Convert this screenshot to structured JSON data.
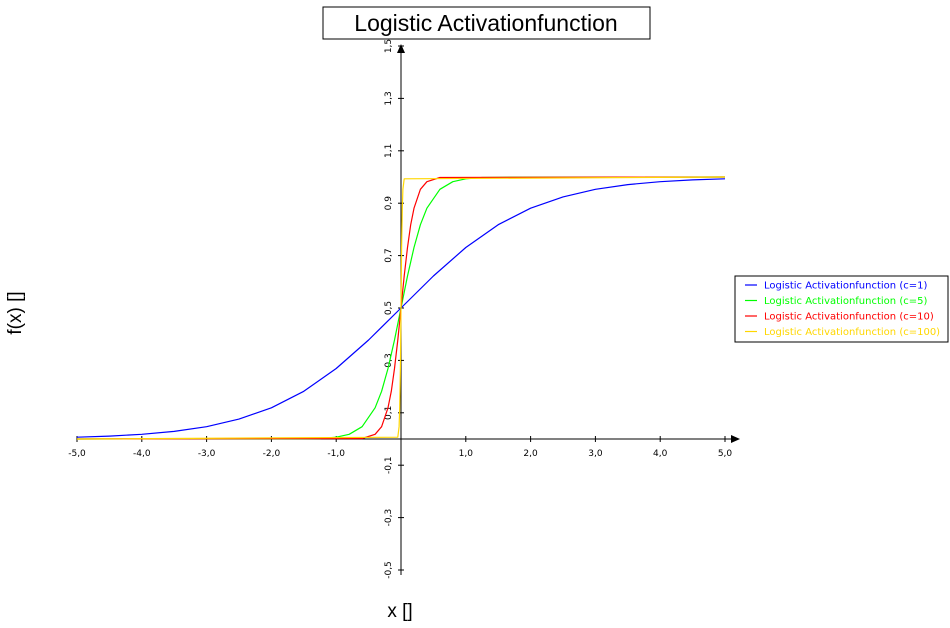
{
  "chart_data": {
    "type": "line",
    "title": "Logistic Activationfunction",
    "xlabel": "x []",
    "ylabel": "f(x) []",
    "xlim": [
      -5.0,
      5.0
    ],
    "ylim": [
      -0.6,
      1.5
    ],
    "x_ticks": [
      {
        "value": -5.0,
        "label": "-5,0"
      },
      {
        "value": -4.0,
        "label": "-4,0"
      },
      {
        "value": -3.0,
        "label": "-3,0"
      },
      {
        "value": -2.0,
        "label": "-2,0"
      },
      {
        "value": -1.0,
        "label": "-1,0"
      },
      {
        "value": 1.0,
        "label": "1,0"
      },
      {
        "value": 2.0,
        "label": "2,0"
      },
      {
        "value": 3.0,
        "label": "3,0"
      },
      {
        "value": 4.0,
        "label": "4,0"
      },
      {
        "value": 5.0,
        "label": "5,0"
      }
    ],
    "y_ticks": [
      {
        "value": 1.5,
        "label": "1,5"
      },
      {
        "value": 1.3,
        "label": "1,3"
      },
      {
        "value": 1.1,
        "label": "1,1"
      },
      {
        "value": 0.9,
        "label": "0,9"
      },
      {
        "value": 0.7,
        "label": "0,7"
      },
      {
        "value": 0.5,
        "label": "0,5"
      },
      {
        "value": 0.3,
        "label": "0,3"
      },
      {
        "value": 0.1,
        "label": "0,1"
      },
      {
        "value": -0.1,
        "label": "-0,1"
      },
      {
        "value": -0.3,
        "label": "-0,3"
      },
      {
        "value": -0.5,
        "label": "-0,5"
      }
    ],
    "grid": false,
    "legend_position": "right",
    "series": [
      {
        "name": "Logistic Activationfunction (c=1)",
        "color": "#0000ff",
        "x": [
          -5.0,
          -4.5,
          -4.0,
          -3.5,
          -3.0,
          -2.5,
          -2.0,
          -1.5,
          -1.0,
          -0.5,
          0.0,
          0.5,
          1.0,
          1.5,
          2.0,
          2.5,
          3.0,
          3.5,
          4.0,
          4.5,
          5.0
        ],
        "y": [
          0.007,
          0.011,
          0.018,
          0.029,
          0.047,
          0.076,
          0.119,
          0.182,
          0.269,
          0.378,
          0.5,
          0.622,
          0.731,
          0.818,
          0.881,
          0.924,
          0.953,
          0.971,
          0.982,
          0.989,
          0.993
        ]
      },
      {
        "name": "Logistic Activationfunction (c=5)",
        "color": "#00ff00",
        "x": [
          -5.0,
          -1.5,
          -1.25,
          -1.0,
          -0.8,
          -0.6,
          -0.4,
          -0.3,
          -0.2,
          -0.1,
          0.0,
          0.1,
          0.2,
          0.3,
          0.4,
          0.6,
          0.8,
          1.0,
          1.25,
          1.5,
          5.0
        ],
        "y": [
          0.0,
          0.001,
          0.002,
          0.007,
          0.018,
          0.047,
          0.119,
          0.182,
          0.269,
          0.378,
          0.5,
          0.622,
          0.731,
          0.818,
          0.881,
          0.953,
          0.982,
          0.993,
          0.998,
          0.999,
          1.0
        ]
      },
      {
        "name": "Logistic Activationfunction (c=10)",
        "color": "#ff0000",
        "x": [
          -5.0,
          -0.6,
          -0.4,
          -0.3,
          -0.2,
          -0.15,
          -0.1,
          -0.05,
          0.0,
          0.05,
          0.1,
          0.15,
          0.2,
          0.3,
          0.4,
          0.6,
          5.0
        ],
        "y": [
          0.0,
          0.002,
          0.018,
          0.047,
          0.119,
          0.182,
          0.269,
          0.378,
          0.5,
          0.622,
          0.731,
          0.818,
          0.881,
          0.953,
          0.982,
          0.998,
          1.0
        ]
      },
      {
        "name": "Logistic Activationfunction (c=100)",
        "color": "#ffd700",
        "x": [
          -5.0,
          -0.05,
          -0.03,
          -0.02,
          -0.01,
          0.0,
          0.01,
          0.02,
          0.03,
          0.05,
          5.0
        ],
        "y": [
          0.0,
          0.007,
          0.047,
          0.119,
          0.269,
          0.5,
          0.731,
          0.881,
          0.953,
          0.993,
          1.0
        ]
      }
    ]
  }
}
